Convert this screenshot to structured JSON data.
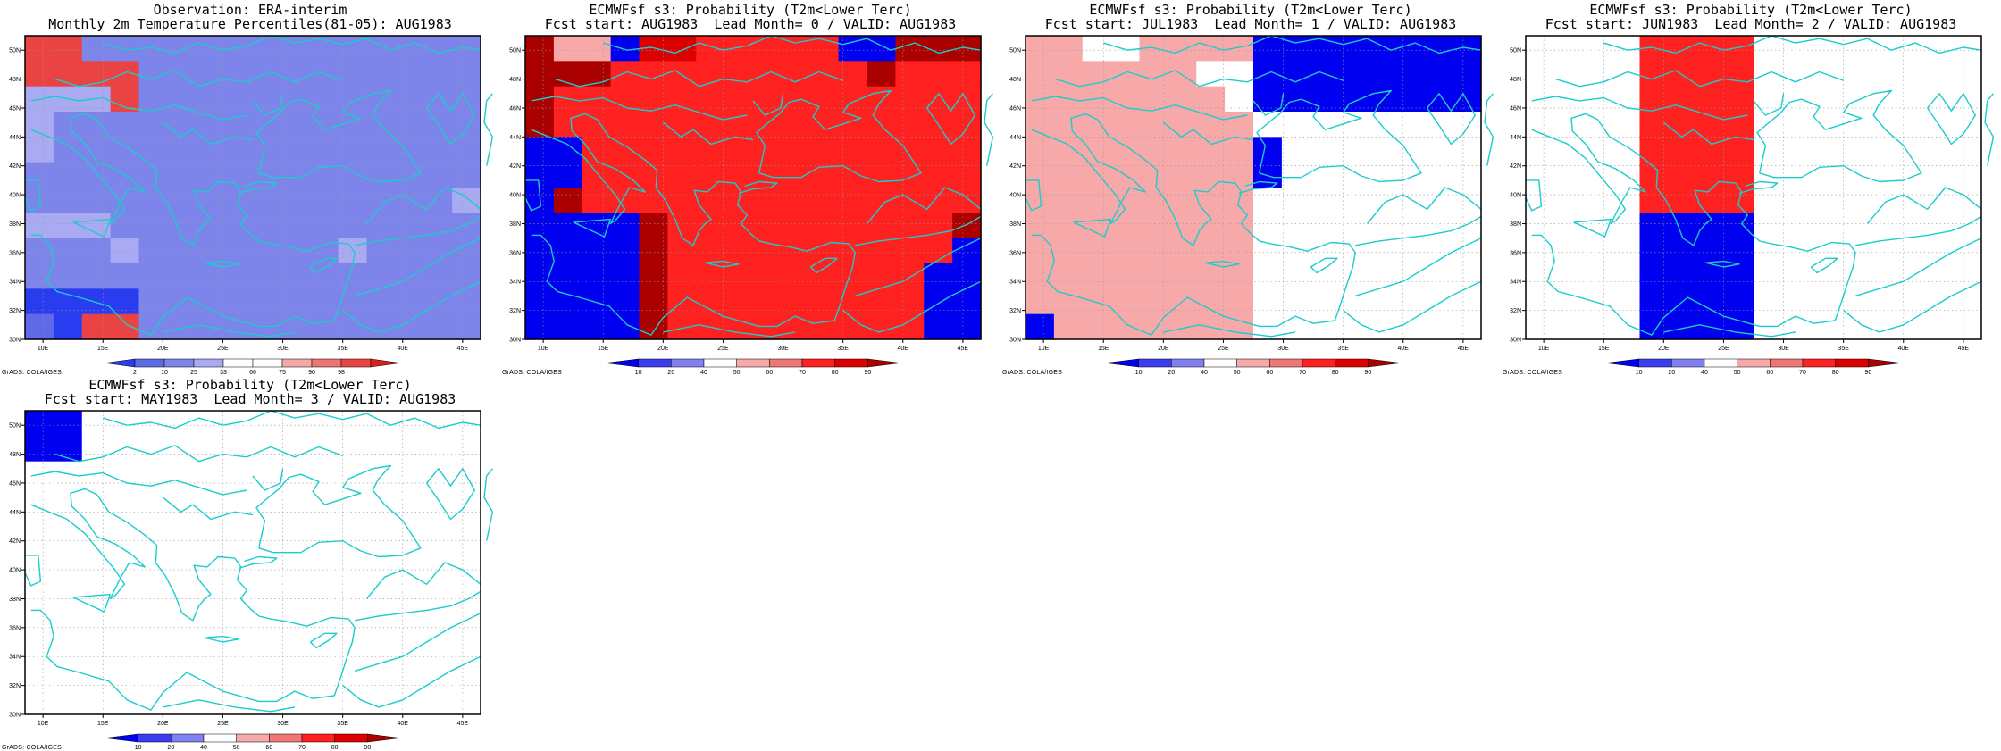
{
  "lon_ticks": [
    "10E",
    "15E",
    "20E",
    "25E",
    "30E",
    "35E",
    "40E",
    "45E"
  ],
  "lat_ticks": [
    "30N",
    "32N",
    "34N",
    "36N",
    "38N",
    "40N",
    "42N",
    "44N",
    "46N",
    "48N",
    "50N"
  ],
  "credit": "GrADS: COLA/IGES",
  "palettes": {
    "percentile": {
      "colors": [
        "#2a3cf0",
        "#5e6ae8",
        "#7d85eb",
        "#a9aaf2",
        "#ffffff",
        "#ffffff",
        "#f4a7a7",
        "#ee7474",
        "#ea4343",
        "#e01d1d"
      ],
      "labels": [
        "2",
        "10",
        "25",
        "33",
        "66",
        "75",
        "90",
        "98"
      ]
    },
    "probability": {
      "colors": [
        "#0000f0",
        "#3c3cf0",
        "#8080f2",
        "#ffffff",
        "#f7a9a9",
        "#f07676",
        "#ff2020",
        "#dd0000",
        "#aa0000"
      ],
      "labels": [
        "10",
        "20",
        "40",
        "50",
        "60",
        "70",
        "80",
        "90"
      ]
    }
  },
  "panels": [
    {
      "title1": "Observation: ERA-interim",
      "title2": "Monthly 2m Temperature Percentiles(81-05): AUG1983",
      "palette": "percentile",
      "grid": [
        "8822222222222222",
        "8888222222222222",
        "3338222222222222",
        "3222222222222222",
        "3222222222222222",
        "2222222222222222",
        "2222222222222223",
        "3332222222222222",
        "2223222222232222",
        "2222222222222222",
        "0000222222222222",
        "1088222222222222"
      ]
    },
    {
      "title1": "ECMWFsf s3: Probability (T2m<Lower Terc)",
      "title2": "Fcst start: AUG1983  Lead Month= 0 / VALID: AUG1983",
      "palette": "probability",
      "grid": [
        "8440776666600888",
        "8886666666668666",
        "8666666666666666",
        "8666666666666666",
        "0066666666666666",
        "0066666666666666",
        "0866666666666666",
        "0000866666666668",
        "0000866666666660",
        "0000866666666600",
        "0000866666666600",
        "0000866666666600"
      ]
    },
    {
      "title1": "ECMWFsf s3: Probability (T2m<Lower Terc)",
      "title2": "Fcst start: JUL1983  Lead Month= 1 / VALID: AUG1983",
      "palette": "probability",
      "grid": [
        "4433444400000000",
        "4444443300000000",
        "4444444300000000",
        "4444444433333333",
        "4444444403333333",
        "4444444403333333",
        "4444444433333333",
        "4444444433333333",
        "4444444433333333",
        "4444444433333333",
        "4444444433333333",
        "0444444433333333"
      ]
    },
    {
      "title1": "ECMWFsf s3: Probability (T2m<Lower Terc)",
      "title2": "Fcst start: JUN1983  Lead Month= 2 / VALID: AUG1983",
      "palette": "probability",
      "grid": [
        "3333666633333333",
        "3333666633333333",
        "3333666633333333",
        "3333666633333333",
        "3333666633333333",
        "3333666633333333",
        "3333666633333333",
        "3333000033333333",
        "3333000033333333",
        "3333000033333333",
        "3333000033333333",
        "3333000033333333"
      ]
    },
    {
      "title1": "ECMWFsf s3: Probability (T2m<Lower Terc)",
      "title2": "Fcst start: MAY1983  Lead Month= 3 / VALID: AUG1983",
      "palette": "probability",
      "grid": [
        "0033333333333333",
        "0033333333333333",
        "3333333333333333",
        "3333333333333333",
        "3333333333333333",
        "3333333333333333",
        "3333333333333333",
        "3333333333333333",
        "3333333333333333",
        "3333333333333333",
        "3333333333333333",
        "3333333333333333"
      ]
    }
  ]
}
